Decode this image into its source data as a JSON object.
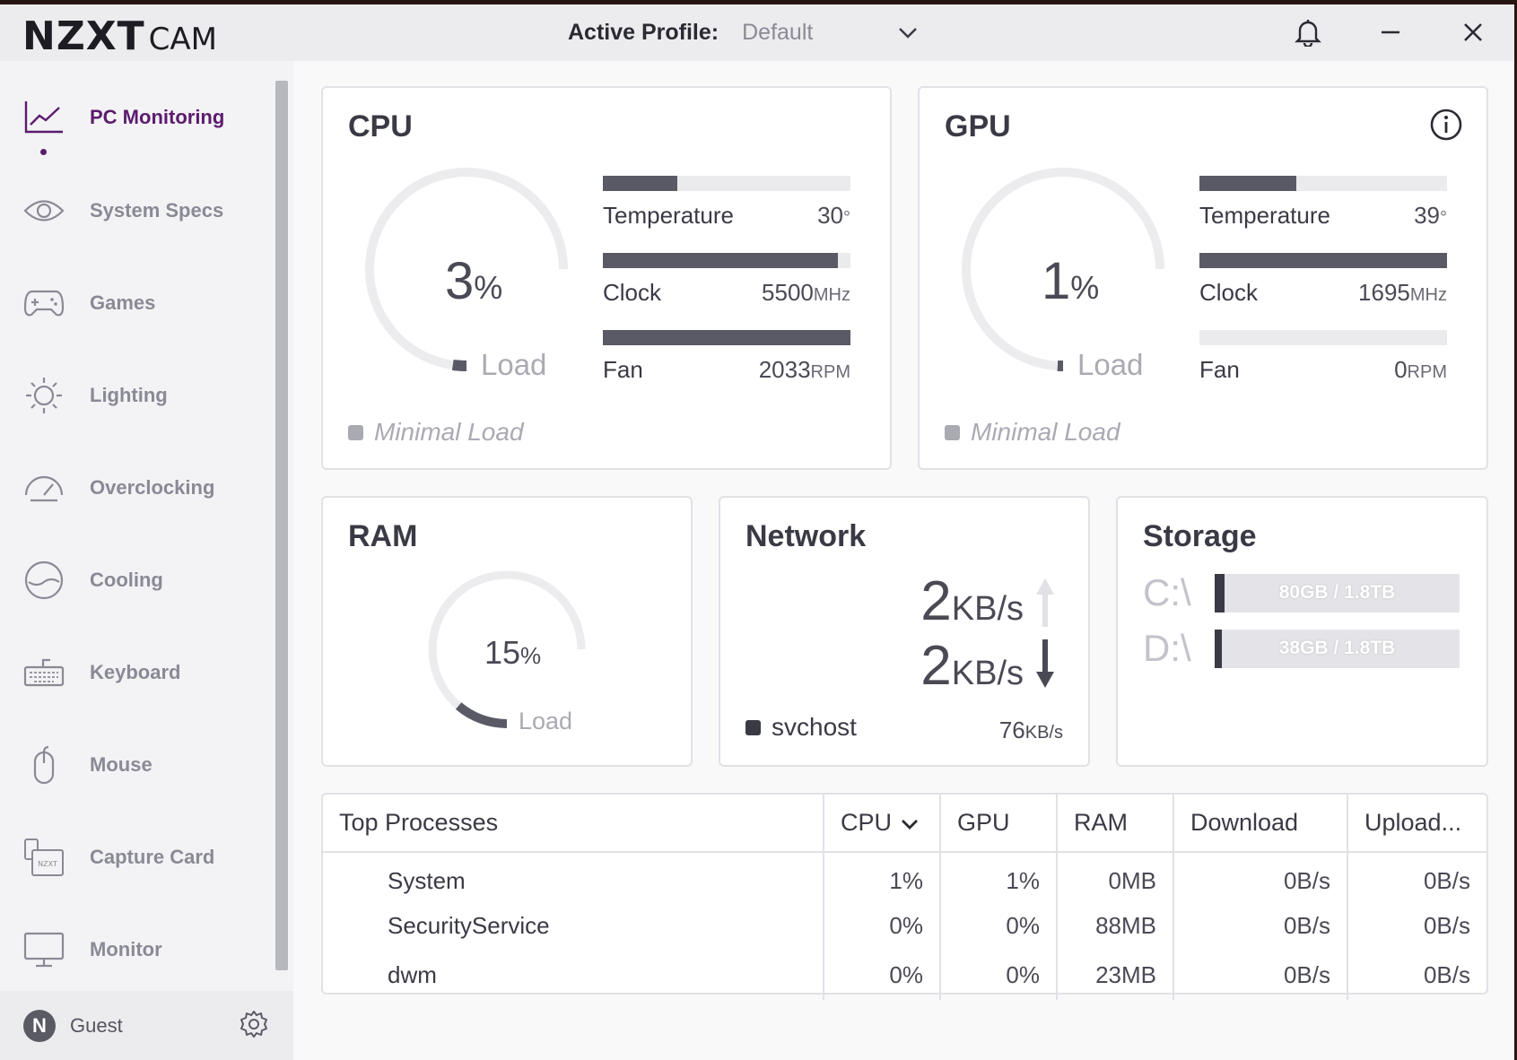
{
  "app": {
    "brand": "NZXT",
    "name": "CAM"
  },
  "header": {
    "profile_label": "Active Profile:",
    "profile_value": "Default"
  },
  "sidebar": {
    "items": [
      {
        "label": "PC Monitoring",
        "icon": "chart-line-icon",
        "active": true
      },
      {
        "label": "System Specs",
        "icon": "eye-icon"
      },
      {
        "label": "Games",
        "icon": "gamepad-icon"
      },
      {
        "label": "Lighting",
        "icon": "sun-icon"
      },
      {
        "label": "Overclocking",
        "icon": "speedometer-icon"
      },
      {
        "label": "Cooling",
        "icon": "cooling-icon"
      },
      {
        "label": "Keyboard",
        "icon": "keyboard-icon"
      },
      {
        "label": "Mouse",
        "icon": "mouse-icon"
      },
      {
        "label": "Capture Card",
        "icon": "capture-card-icon"
      },
      {
        "label": "Monitor",
        "icon": "monitor-icon"
      }
    ],
    "user": {
      "initial": "N",
      "name": "Guest"
    }
  },
  "cpu": {
    "title": "CPU",
    "load": "3",
    "load_unit": "%",
    "load_label": "Load",
    "load_fraction": 0.03,
    "status": "Minimal Load",
    "temperature": {
      "label": "Temperature",
      "value": "30",
      "unit": "°",
      "fraction": 0.3
    },
    "clock": {
      "label": "Clock",
      "value": "5500",
      "unit": "MHz",
      "fraction": 0.95
    },
    "fan": {
      "label": "Fan",
      "value": "2033",
      "unit": "RPM",
      "fraction": 1.0
    }
  },
  "gpu": {
    "title": "GPU",
    "load": "1",
    "load_unit": "%",
    "load_label": "Load",
    "load_fraction": 0.01,
    "status": "Minimal Load",
    "temperature": {
      "label": "Temperature",
      "value": "39",
      "unit": "°",
      "fraction": 0.39
    },
    "clock": {
      "label": "Clock",
      "value": "1695",
      "unit": "MHz",
      "fraction": 1.0
    },
    "fan": {
      "label": "Fan",
      "value": "0",
      "unit": "RPM",
      "fraction": 0.0
    }
  },
  "ram": {
    "title": "RAM",
    "load": "15",
    "load_unit": "%",
    "load_label": "Load",
    "load_fraction": 0.15
  },
  "network": {
    "title": "Network",
    "upload": "2",
    "upload_unit": "KB/s",
    "download": "2",
    "download_unit": "KB/s",
    "top_process": "svchost",
    "top_process_rate": "76",
    "top_process_unit": "KB/s"
  },
  "storage": {
    "title": "Storage",
    "drives": [
      {
        "label": "C:\\",
        "usage": "80GB / 1.8TB",
        "fraction": 0.04
      },
      {
        "label": "D:\\",
        "usage": "38GB / 1.8TB",
        "fraction": 0.02
      }
    ]
  },
  "processes": {
    "headers": [
      "Top Processes",
      "CPU",
      "GPU",
      "RAM",
      "Download",
      "Upload..."
    ],
    "rows": [
      {
        "name": "System",
        "cpu": "1%",
        "gpu": "1%",
        "ram": "0MB",
        "download": "0B/s",
        "upload": "0B/s"
      },
      {
        "name": "SecurityService",
        "cpu": "0%",
        "gpu": "0%",
        "ram": "88MB",
        "download": "0B/s",
        "upload": "0B/s"
      },
      {
        "name": "dwm",
        "cpu": "0%",
        "gpu": "0%",
        "ram": "23MB",
        "download": "0B/s",
        "upload": "0B/s"
      }
    ]
  },
  "colors": {
    "accent": "#5c1b6e",
    "bar_fill": "#5a5a66",
    "bar_track": "#ebebee"
  }
}
